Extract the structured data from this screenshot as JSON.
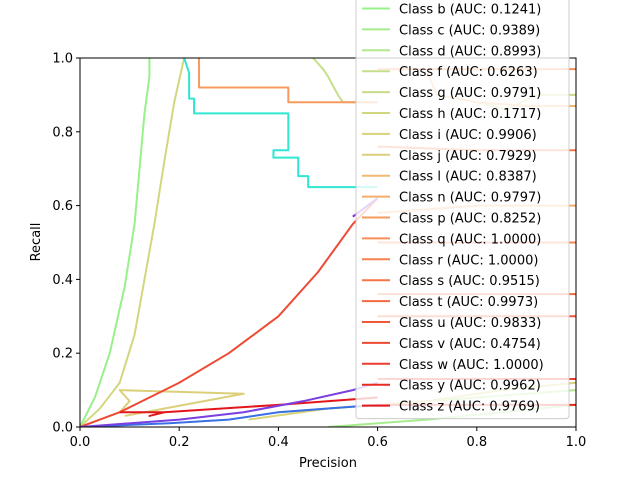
{
  "chart_data": {
    "type": "line",
    "title": "",
    "xlabel": "Precision",
    "ylabel": "Recall",
    "xlim": [
      0,
      1
    ],
    "ylim": [
      0,
      1
    ],
    "xticks": [
      "0.0",
      "0.2",
      "0.4",
      "0.6",
      "0.8",
      "1.0"
    ],
    "yticks": [
      "0.0",
      "0.2",
      "0.4",
      "0.6",
      "0.8",
      "1.0"
    ],
    "grid": false,
    "legend_position": "top-right",
    "series": [
      {
        "name": "Class b (AUC: 0.1241)",
        "color": "#98f08a",
        "points": [
          [
            0.0,
            0.0
          ],
          [
            0.03,
            0.08
          ],
          [
            0.06,
            0.2
          ],
          [
            0.09,
            0.38
          ],
          [
            0.11,
            0.55
          ],
          [
            0.12,
            0.7
          ],
          [
            0.13,
            0.85
          ],
          [
            0.14,
            0.95
          ],
          [
            0.14,
            1.0
          ]
        ]
      },
      {
        "name": "Class c (AUC: 0.9389)",
        "color": "#a6ec8c",
        "points": [
          [
            0.5,
            0.0
          ],
          [
            0.7,
            0.02
          ],
          [
            0.85,
            0.04
          ],
          [
            1.0,
            0.06
          ]
        ]
      },
      {
        "name": "Class d (AUC: 0.8993)",
        "color": "#b3e78e",
        "points": [
          [
            0.4,
            0.04
          ],
          [
            0.6,
            0.06
          ],
          [
            0.8,
            0.08
          ],
          [
            1.0,
            0.1
          ]
        ]
      },
      {
        "name": "Class f (AUC: 0.6263)",
        "color": "#c5df8b",
        "points": [
          [
            0.47,
            1.0
          ],
          [
            0.49,
            0.97
          ],
          [
            0.5,
            0.95
          ],
          [
            0.52,
            0.9
          ],
          [
            0.53,
            0.88
          ],
          [
            0.6,
            0.88
          ]
        ]
      },
      {
        "name": "Class g (AUC: 0.9791)",
        "color": "#c9dc8a",
        "points": [
          [
            0.8,
            0.88
          ],
          [
            0.86,
            0.86
          ],
          [
            0.92,
            0.9
          ],
          [
            1.0,
            0.9
          ]
        ]
      },
      {
        "name": "Class h (AUC: 0.1717)",
        "color": "#d2d77f",
        "points": [
          [
            0.0,
            0.0
          ],
          [
            0.04,
            0.05
          ],
          [
            0.08,
            0.12
          ],
          [
            0.11,
            0.25
          ],
          [
            0.13,
            0.4
          ],
          [
            0.15,
            0.55
          ],
          [
            0.17,
            0.72
          ],
          [
            0.19,
            0.88
          ],
          [
            0.21,
            1.0
          ]
        ]
      },
      {
        "name": "Class i (AUC: 0.9906)",
        "color": "#d9d37a",
        "points": [
          [
            0.34,
            0.02
          ],
          [
            0.5,
            0.05
          ],
          [
            0.7,
            0.07
          ],
          [
            0.85,
            0.1
          ],
          [
            1.0,
            0.12
          ]
        ]
      },
      {
        "name": "Class j (AUC: 0.7929)",
        "color": "#dccf7a",
        "points": [
          [
            0.08,
            0.04
          ],
          [
            0.1,
            0.07
          ],
          [
            0.08,
            0.1
          ],
          [
            0.33,
            0.09
          ],
          [
            0.09,
            0.03
          ]
        ]
      },
      {
        "name": "Class l (AUC: 0.8387)",
        "color": "#f0b872",
        "points": [
          [
            0.7,
            0.96
          ],
          [
            0.72,
            0.9
          ],
          [
            0.8,
            0.88
          ],
          [
            0.9,
            0.87
          ],
          [
            1.0,
            0.87
          ]
        ]
      },
      {
        "name": "Class n (AUC: 0.9797)",
        "color": "#f4ad6c",
        "points": [
          [
            0.6,
            0.58
          ],
          [
            0.8,
            0.6
          ],
          [
            1.0,
            0.6
          ]
        ]
      },
      {
        "name": "Class p (AUC: 0.8252)",
        "color": "#f79a5e",
        "points": [
          [
            0.24,
            1.0
          ],
          [
            0.24,
            0.92
          ],
          [
            0.42,
            0.92
          ],
          [
            0.42,
            0.88
          ],
          [
            0.6,
            0.88
          ]
        ]
      },
      {
        "name": "Class q (AUC: 1.0000)",
        "color": "#f88d55",
        "points": [
          [
            0.6,
            0.97
          ],
          [
            1.0,
            0.97
          ]
        ]
      },
      {
        "name": "Class r (AUC: 1.0000)",
        "color": "#f7834f",
        "points": [
          [
            0.6,
            0.5
          ],
          [
            1.0,
            0.5
          ]
        ]
      },
      {
        "name": "Class s (AUC: 0.9515)",
        "color": "#f57448",
        "points": [
          [
            0.6,
            0.76
          ],
          [
            0.8,
            0.75
          ],
          [
            1.0,
            0.75
          ]
        ]
      },
      {
        "name": "Class t (AUC: 0.9973)",
        "color": "#f36a42",
        "points": [
          [
            0.6,
            0.36
          ],
          [
            0.8,
            0.36
          ],
          [
            1.0,
            0.36
          ]
        ]
      },
      {
        "name": "Class u (AUC: 0.9833)",
        "color": "#f0573a",
        "points": [
          [
            0.6,
            0.3
          ],
          [
            0.8,
            0.3
          ],
          [
            1.0,
            0.3
          ]
        ]
      },
      {
        "name": "Class v (AUC: 0.4754)",
        "color": "#ee4a34",
        "points": [
          [
            0.0,
            0.0
          ],
          [
            0.08,
            0.04
          ],
          [
            0.2,
            0.12
          ],
          [
            0.3,
            0.2
          ],
          [
            0.4,
            0.3
          ],
          [
            0.48,
            0.42
          ],
          [
            0.55,
            0.55
          ],
          [
            0.6,
            0.62
          ]
        ]
      },
      {
        "name": "Class w (AUC: 1.0000)",
        "color": "#eb3d2e",
        "points": [
          [
            0.6,
            0.13
          ],
          [
            1.0,
            0.13
          ]
        ]
      },
      {
        "name": "Class y (AUC: 0.9962)",
        "color": "#e82a23",
        "points": [
          [
            0.6,
            0.06
          ],
          [
            1.0,
            0.06
          ]
        ]
      },
      {
        "name": "Class z (AUC: 0.9769)",
        "color": "#e3161a",
        "points": [
          [
            0.08,
            0.04
          ],
          [
            0.17,
            0.04
          ],
          [
            0.14,
            0.03
          ],
          [
            0.17,
            0.04
          ],
          [
            0.4,
            0.06
          ],
          [
            0.6,
            0.08
          ]
        ]
      },
      {
        "name": "",
        "color": "#2fe6d2",
        "points": [
          [
            0.21,
            1.0
          ],
          [
            0.22,
            0.96
          ],
          [
            0.22,
            0.89
          ],
          [
            0.23,
            0.89
          ],
          [
            0.23,
            0.85
          ],
          [
            0.42,
            0.85
          ],
          [
            0.42,
            0.75
          ],
          [
            0.39,
            0.75
          ],
          [
            0.39,
            0.73
          ],
          [
            0.44,
            0.73
          ],
          [
            0.44,
            0.68
          ],
          [
            0.46,
            0.68
          ],
          [
            0.46,
            0.65
          ],
          [
            0.6,
            0.65
          ]
        ]
      },
      {
        "name": "",
        "color": "#3a6fe6",
        "points": [
          [
            0.0,
            0.0
          ],
          [
            0.18,
            0.01
          ],
          [
            0.3,
            0.02
          ],
          [
            0.4,
            0.04
          ],
          [
            0.5,
            0.05
          ],
          [
            0.6,
            0.06
          ]
        ]
      },
      {
        "name": "",
        "color": "#7a3fe0",
        "points": [
          [
            0.0,
            0.0
          ],
          [
            0.2,
            0.02
          ],
          [
            0.33,
            0.04
          ],
          [
            0.45,
            0.07
          ],
          [
            0.55,
            0.1
          ],
          [
            0.6,
            0.12
          ]
        ]
      },
      {
        "name": "",
        "color": "#8a2be2",
        "points": [
          [
            0.55,
            0.57
          ],
          [
            0.58,
            0.6
          ],
          [
            0.6,
            0.62
          ]
        ]
      }
    ]
  }
}
